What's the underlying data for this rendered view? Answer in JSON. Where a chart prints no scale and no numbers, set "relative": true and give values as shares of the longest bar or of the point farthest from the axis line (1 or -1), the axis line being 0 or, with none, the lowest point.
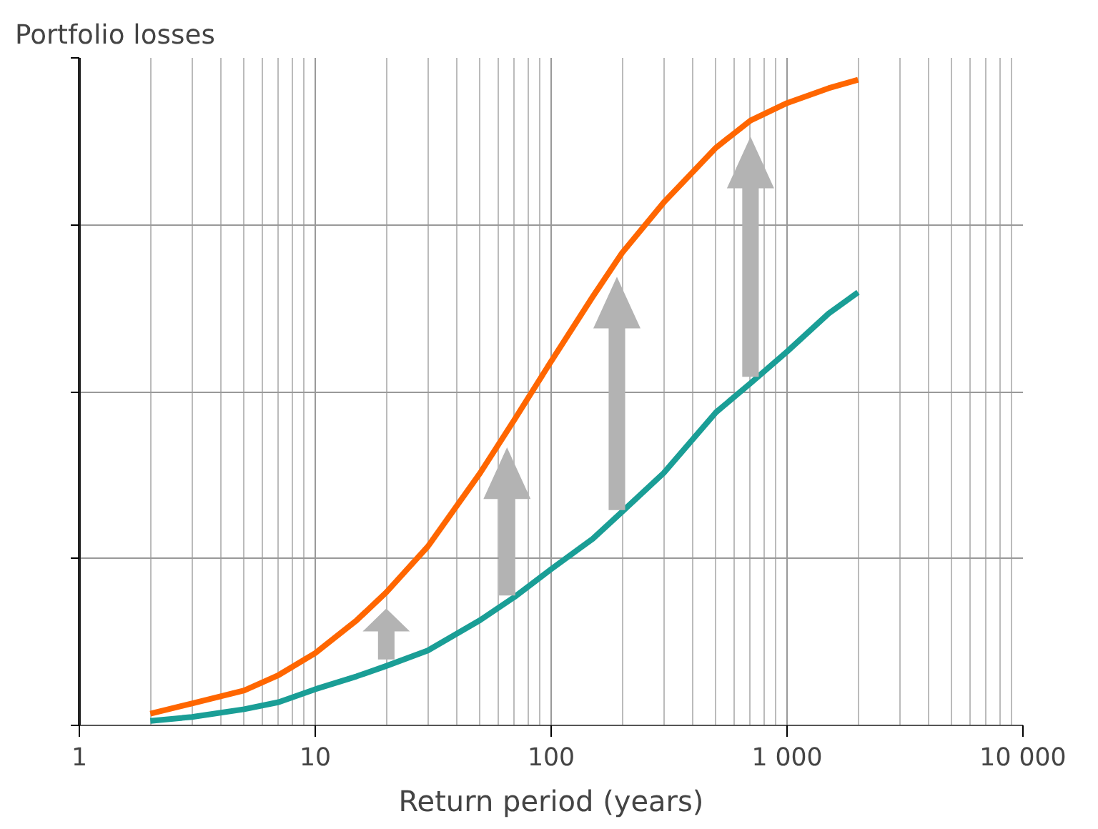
{
  "chart_data": {
    "type": "line",
    "xlabel": "Return period (years)",
    "ylabel": "Portfolio losses",
    "relative": true,
    "log": "x",
    "grid": true,
    "marker": "none",
    "line_style": "solid",
    "x": [
      2,
      3,
      5,
      7,
      10,
      15,
      20,
      30,
      50,
      70,
      100,
      150,
      200,
      300,
      500,
      700,
      1000,
      1500,
      2000
    ],
    "xlim": [
      1,
      10000
    ],
    "xticks": [
      1,
      10,
      100,
      {
        "value": 1000,
        "label": "1 000"
      },
      {
        "value": 10000,
        "label": "10 000"
      }
    ],
    "series": [
      {
        "color": "#ff6600",
        "values": [
          0.018,
          0.034,
          0.054,
          0.078,
          0.112,
          0.163,
          0.206,
          0.277,
          0.391,
          0.474,
          0.564,
          0.664,
          0.732,
          0.81,
          0.895,
          0.937,
          0.964,
          0.987,
          1.0
        ]
      },
      {
        "color": "#1a9e96",
        "values": [
          0.007,
          0.013,
          0.025,
          0.036,
          0.056,
          0.076,
          0.092,
          0.116,
          0.163,
          0.199,
          0.242,
          0.289,
          0.331,
          0.391,
          0.485,
          0.53,
          0.579,
          0.638,
          0.671
        ]
      }
    ]
  }
}
